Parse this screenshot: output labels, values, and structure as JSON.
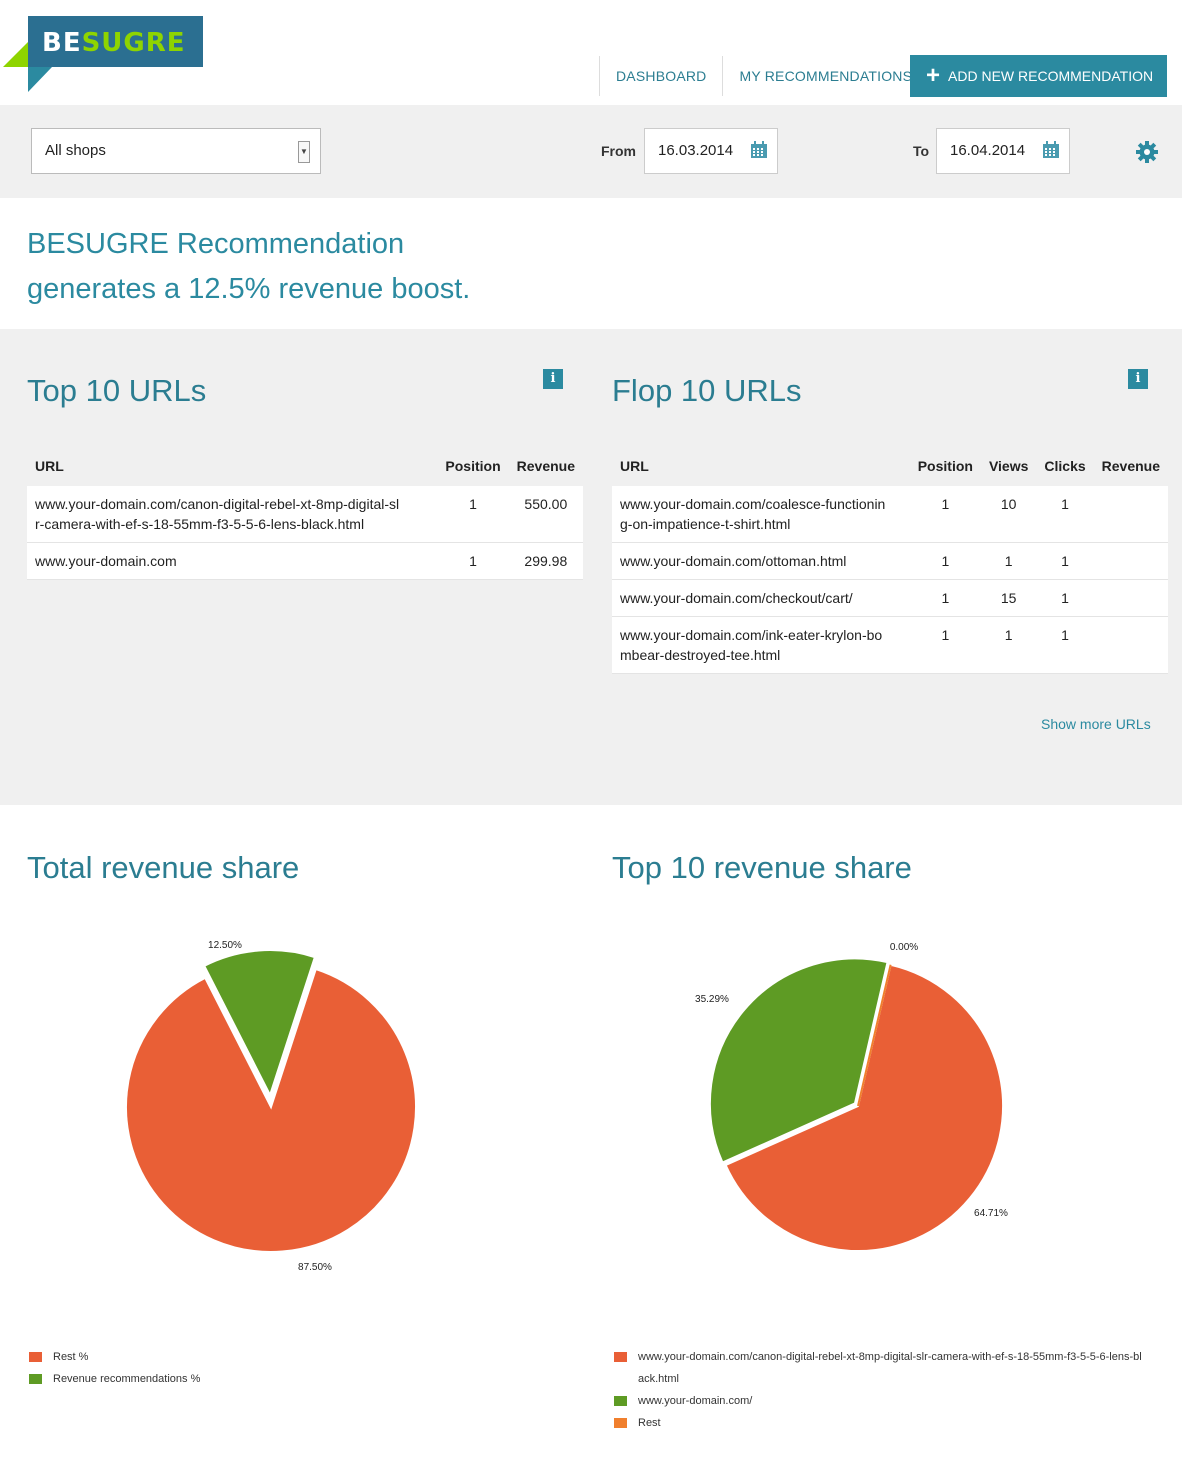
{
  "brand": {
    "logo_part1": "BE",
    "logo_part2": "SUGRE",
    "colors": {
      "teal": "#2b8aa0",
      "dark_teal": "#2b7d91",
      "lime": "#8ed400"
    }
  },
  "nav": {
    "dashboard": "DASHBOARD",
    "recommendations": "MY RECOMMENDATIONS",
    "add_new": "ADD NEW RECOMMENDATION",
    "add_icon": "+"
  },
  "filter": {
    "shop_select": "All shops",
    "from_label": "From",
    "from_value": "16.03.2014",
    "to_label": "To",
    "to_value": "16.04.2014",
    "icons": [
      "calendar-icon",
      "gear-icon"
    ]
  },
  "hero": {
    "line1": "BESUGRE Recommendation",
    "line2": "generates a 12.5% revenue boost."
  },
  "top10": {
    "title": "Top 10 URLs",
    "info": "i",
    "headers": [
      "URL",
      "Position",
      "Revenue"
    ],
    "rows": [
      {
        "url_l1": "www.your-domain.com/canon-digital-rebel-xt-8mp-digital-sl",
        "url_l2": "r-camera-with-ef-s-18-55mm-f3-5-5-6-lens-black.html",
        "position": "1",
        "revenue": "550.00"
      },
      {
        "url_l1": "www.your-domain.com",
        "url_l2": "",
        "position": "1",
        "revenue": "299.98"
      }
    ]
  },
  "flop10": {
    "title": "Flop 10 URLs",
    "info": "i",
    "headers": [
      "URL",
      "Position",
      "Views",
      "Clicks",
      "Revenue"
    ],
    "rows": [
      {
        "url_l1": "www.your-domain.com/coalesce-functionin",
        "url_l2": "g-on-impatience-t-shirt.html",
        "position": "1",
        "views": "10",
        "clicks": "1",
        "revenue": ""
      },
      {
        "url_l1": "www.your-domain.com/ottoman.html",
        "url_l2": "",
        "position": "1",
        "views": "1",
        "clicks": "1",
        "revenue": ""
      },
      {
        "url_l1": "www.your-domain.com/checkout/cart/",
        "url_l2": "",
        "position": "1",
        "views": "15",
        "clicks": "1",
        "revenue": ""
      },
      {
        "url_l1": "www.your-domain.com/ink-eater-krylon-bo",
        "url_l2": "mbear-destroyed-tee.html",
        "position": "1",
        "views": "1",
        "clicks": "1",
        "revenue": ""
      }
    ],
    "show_more": "Show more URLs"
  },
  "charts": {
    "total_title": "Total revenue share",
    "top10_title": "Top 10 revenue share"
  },
  "chart_data": [
    {
      "type": "pie",
      "title": "Total revenue share",
      "slices": [
        {
          "name": "Rest %",
          "value": 87.5,
          "label": "87.50%",
          "color": "#e95f36"
        },
        {
          "name": "Revenue recommendations %",
          "value": 12.5,
          "label": "12.50%",
          "color": "#5e9b24"
        }
      ],
      "legend": "bottom-left"
    },
    {
      "type": "pie",
      "title": "Top 10 revenue share",
      "slices": [
        {
          "name": "www.your-domain.com/canon-digital-rebel-xt-8mp-digital-slr-camera-with-ef-s-18-55mm-f3-5-5-6-lens-black.html",
          "value": 64.71,
          "label": "64.71%",
          "color": "#e95f36"
        },
        {
          "name": "www.your-domain.com/",
          "value": 35.29,
          "label": "35.29%",
          "color": "#5e9b24"
        },
        {
          "name": "Rest",
          "value": 0.0,
          "label": "0.00%",
          "color": "#f07f2d"
        }
      ],
      "legend": "bottom-left"
    }
  ]
}
